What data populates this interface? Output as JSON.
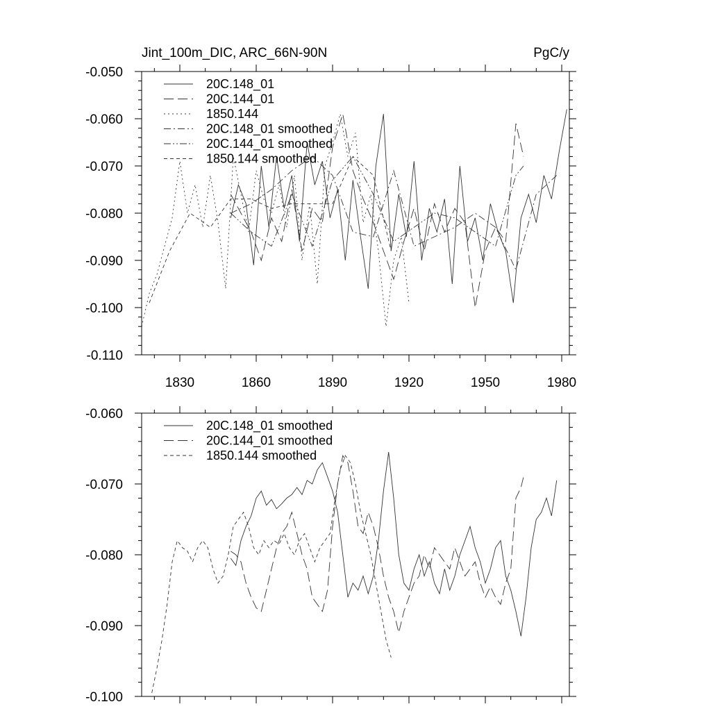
{
  "chart_data": [
    {
      "type": "line",
      "title": "Jint_100m_DIC, ARC_66N-90N",
      "units": "PgC/y",
      "xlim": [
        1815,
        1983
      ],
      "ylim": [
        -0.11,
        -0.05
      ],
      "x_ticks": [
        1830,
        1860,
        1890,
        1920,
        1950,
        1980
      ],
      "y_ticks": [
        "-0.050",
        "-0.060",
        "-0.070",
        "-0.080",
        "-0.090",
        "-0.100",
        "-0.110"
      ],
      "legend_position": "top-left",
      "series": [
        {
          "name": "20C.148_01",
          "dash": "solid",
          "x": [
            1850,
            1853,
            1856,
            1859,
            1862,
            1865,
            1868,
            1871,
            1874,
            1877,
            1880,
            1883,
            1886,
            1889,
            1892,
            1895,
            1898,
            1901,
            1904,
            1907,
            1910,
            1913,
            1916,
            1919,
            1922,
            1925,
            1928,
            1931,
            1934,
            1937,
            1940,
            1943,
            1946,
            1949,
            1952,
            1955,
            1958,
            1961,
            1964,
            1967,
            1970,
            1973,
            1976,
            1979,
            1982
          ],
          "y": [
            -0.081,
            -0.074,
            -0.078,
            -0.091,
            -0.07,
            -0.083,
            -0.068,
            -0.079,
            -0.072,
            -0.086,
            -0.065,
            -0.074,
            -0.069,
            -0.081,
            -0.075,
            -0.09,
            -0.073,
            -0.085,
            -0.096,
            -0.07,
            -0.059,
            -0.088,
            -0.076,
            -0.085,
            -0.069,
            -0.09,
            -0.079,
            -0.084,
            -0.077,
            -0.095,
            -0.07,
            -0.086,
            -0.081,
            -0.09,
            -0.078,
            -0.084,
            -0.088,
            -0.099,
            -0.081,
            -0.076,
            -0.082,
            -0.072,
            -0.077,
            -0.067,
            -0.058
          ]
        },
        {
          "name": "20C.144_01",
          "dash": "long-dash",
          "x": [
            1850,
            1854,
            1858,
            1862,
            1866,
            1870,
            1874,
            1878,
            1882,
            1886,
            1890,
            1894,
            1898,
            1902,
            1906,
            1910,
            1914,
            1918,
            1922,
            1926,
            1930,
            1934,
            1938,
            1942,
            1946,
            1950,
            1954,
            1958,
            1962,
            1965
          ],
          "y": [
            -0.076,
            -0.08,
            -0.084,
            -0.09,
            -0.081,
            -0.086,
            -0.075,
            -0.088,
            -0.079,
            -0.082,
            -0.066,
            -0.059,
            -0.071,
            -0.077,
            -0.082,
            -0.088,
            -0.094,
            -0.086,
            -0.079,
            -0.088,
            -0.078,
            -0.084,
            -0.079,
            -0.082,
            -0.1,
            -0.088,
            -0.083,
            -0.086,
            -0.061,
            -0.068
          ]
        },
        {
          "name": "1850.144",
          "dash": "dotted",
          "x": [
            1815,
            1818,
            1821,
            1824,
            1827,
            1830,
            1833,
            1836,
            1839,
            1842,
            1845,
            1848,
            1851,
            1854,
            1857,
            1860,
            1863,
            1866,
            1869,
            1872,
            1875,
            1878,
            1881,
            1884,
            1887,
            1890,
            1893,
            1896,
            1899,
            1902,
            1905,
            1908,
            1911,
            1914,
            1917,
            1920
          ],
          "y": [
            -0.104,
            -0.097,
            -0.093,
            -0.087,
            -0.081,
            -0.069,
            -0.08,
            -0.074,
            -0.083,
            -0.072,
            -0.082,
            -0.096,
            -0.068,
            -0.076,
            -0.084,
            -0.071,
            -0.077,
            -0.08,
            -0.074,
            -0.083,
            -0.072,
            -0.09,
            -0.078,
            -0.095,
            -0.07,
            -0.065,
            -0.059,
            -0.068,
            -0.063,
            -0.082,
            -0.076,
            -0.088,
            -0.104,
            -0.09,
            -0.085,
            -0.099
          ]
        },
        {
          "name": "20C.148_01 smoothed",
          "dash": "dash-dot",
          "x": [
            1850,
            1858,
            1866,
            1874,
            1882,
            1890,
            1898,
            1906,
            1914,
            1922,
            1930,
            1938,
            1946,
            1954,
            1962,
            1970,
            1978
          ],
          "y": [
            -0.08,
            -0.078,
            -0.075,
            -0.071,
            -0.068,
            -0.072,
            -0.084,
            -0.085,
            -0.071,
            -0.087,
            -0.085,
            -0.083,
            -0.08,
            -0.083,
            -0.092,
            -0.076,
            -0.072
          ]
        },
        {
          "name": "20C.144_01 smoothed",
          "dash": "dash-dot-dot",
          "x": [
            1850,
            1858,
            1866,
            1874,
            1882,
            1890,
            1898,
            1906,
            1914,
            1922,
            1930,
            1938,
            1946,
            1954,
            1962,
            1965
          ],
          "y": [
            -0.08,
            -0.084,
            -0.087,
            -0.076,
            -0.087,
            -0.073,
            -0.068,
            -0.076,
            -0.086,
            -0.083,
            -0.08,
            -0.081,
            -0.084,
            -0.087,
            -0.072,
            -0.07
          ]
        },
        {
          "name": "1850.144 smoothed",
          "dash": "short-dash",
          "x": [
            1818,
            1826,
            1834,
            1842,
            1850,
            1858,
            1866,
            1874,
            1882,
            1890,
            1898,
            1906,
            1913
          ],
          "y": [
            -0.099,
            -0.088,
            -0.08,
            -0.083,
            -0.077,
            -0.077,
            -0.079,
            -0.078,
            -0.078,
            -0.078,
            -0.068,
            -0.072,
            -0.088
          ]
        }
      ]
    },
    {
      "type": "line",
      "xlim": [
        1815,
        1983
      ],
      "ylim": [
        -0.1,
        -0.06
      ],
      "y_ticks": [
        "-0.060",
        "-0.070",
        "-0.080",
        "-0.090",
        "-0.100"
      ],
      "legend_position": "top-left",
      "series": [
        {
          "name": "20C.148_01 smoothed",
          "dash": "solid",
          "x": [
            1850,
            1852,
            1854,
            1856,
            1858,
            1860,
            1862,
            1864,
            1866,
            1868,
            1870,
            1872,
            1874,
            1876,
            1878,
            1880,
            1882,
            1884,
            1886,
            1888,
            1890,
            1892,
            1894,
            1896,
            1898,
            1900,
            1902,
            1904,
            1906,
            1908,
            1910,
            1912,
            1914,
            1916,
            1918,
            1920,
            1922,
            1924,
            1926,
            1928,
            1930,
            1932,
            1934,
            1936,
            1938,
            1940,
            1942,
            1944,
            1946,
            1948,
            1950,
            1952,
            1954,
            1956,
            1958,
            1960,
            1962,
            1964,
            1966,
            1968,
            1970,
            1972,
            1974,
            1976,
            1978
          ],
          "y": [
            -0.0805,
            -0.0815,
            -0.078,
            -0.076,
            -0.0745,
            -0.072,
            -0.071,
            -0.073,
            -0.0722,
            -0.0735,
            -0.0728,
            -0.072,
            -0.0715,
            -0.0705,
            -0.0715,
            -0.0695,
            -0.07,
            -0.068,
            -0.067,
            -0.069,
            -0.071,
            -0.074,
            -0.08,
            -0.086,
            -0.084,
            -0.085,
            -0.083,
            -0.0855,
            -0.083,
            -0.078,
            -0.071,
            -0.0655,
            -0.072,
            -0.08,
            -0.084,
            -0.085,
            -0.082,
            -0.08,
            -0.083,
            -0.081,
            -0.084,
            -0.0855,
            -0.082,
            -0.085,
            -0.083,
            -0.08,
            -0.078,
            -0.076,
            -0.079,
            -0.081,
            -0.084,
            -0.082,
            -0.079,
            -0.078,
            -0.083,
            -0.085,
            -0.088,
            -0.0915,
            -0.086,
            -0.079,
            -0.075,
            -0.074,
            -0.072,
            -0.0745,
            -0.0695
          ]
        },
        {
          "name": "20C.144_01 smoothed",
          "dash": "long-dash",
          "x": [
            1850,
            1852,
            1854,
            1856,
            1858,
            1860,
            1862,
            1864,
            1866,
            1868,
            1870,
            1872,
            1874,
            1876,
            1878,
            1880,
            1882,
            1884,
            1886,
            1888,
            1890,
            1892,
            1894,
            1896,
            1898,
            1900,
            1902,
            1904,
            1906,
            1908,
            1910,
            1912,
            1914,
            1916,
            1918,
            1920,
            1922,
            1924,
            1926,
            1928,
            1930,
            1932,
            1934,
            1936,
            1938,
            1940,
            1942,
            1944,
            1946,
            1948,
            1950,
            1952,
            1954,
            1956,
            1958,
            1960,
            1962,
            1964,
            1965
          ],
          "y": [
            -0.0795,
            -0.08,
            -0.081,
            -0.084,
            -0.086,
            -0.0875,
            -0.088,
            -0.085,
            -0.082,
            -0.079,
            -0.077,
            -0.076,
            -0.074,
            -0.077,
            -0.08,
            -0.082,
            -0.086,
            -0.087,
            -0.088,
            -0.085,
            -0.076,
            -0.07,
            -0.066,
            -0.067,
            -0.071,
            -0.076,
            -0.077,
            -0.074,
            -0.076,
            -0.079,
            -0.083,
            -0.086,
            -0.088,
            -0.091,
            -0.088,
            -0.086,
            -0.084,
            -0.083,
            -0.08,
            -0.082,
            -0.079,
            -0.08,
            -0.081,
            -0.082,
            -0.079,
            -0.081,
            -0.083,
            -0.082,
            -0.081,
            -0.084,
            -0.086,
            -0.0845,
            -0.086,
            -0.087,
            -0.084,
            -0.082,
            -0.072,
            -0.0705,
            -0.069
          ]
        },
        {
          "name": "1850.144 smoothed",
          "dash": "short-dash",
          "x": [
            1819,
            1821,
            1823,
            1825,
            1827,
            1829,
            1831,
            1833,
            1835,
            1837,
            1839,
            1841,
            1843,
            1845,
            1847,
            1849,
            1851,
            1853,
            1855,
            1857,
            1859,
            1861,
            1863,
            1865,
            1867,
            1869,
            1871,
            1873,
            1875,
            1877,
            1879,
            1881,
            1883,
            1885,
            1887,
            1889,
            1891,
            1893,
            1895,
            1897,
            1899,
            1901,
            1903,
            1905,
            1907,
            1909,
            1911,
            1913
          ],
          "y": [
            -0.0995,
            -0.096,
            -0.092,
            -0.087,
            -0.081,
            -0.078,
            -0.079,
            -0.0795,
            -0.081,
            -0.079,
            -0.078,
            -0.079,
            -0.082,
            -0.084,
            -0.083,
            -0.08,
            -0.076,
            -0.075,
            -0.074,
            -0.076,
            -0.079,
            -0.08,
            -0.078,
            -0.079,
            -0.078,
            -0.0785,
            -0.077,
            -0.079,
            -0.08,
            -0.078,
            -0.077,
            -0.079,
            -0.081,
            -0.079,
            -0.078,
            -0.077,
            -0.072,
            -0.068,
            -0.066,
            -0.067,
            -0.07,
            -0.074,
            -0.077,
            -0.08,
            -0.084,
            -0.088,
            -0.092,
            -0.0945
          ]
        }
      ]
    }
  ]
}
